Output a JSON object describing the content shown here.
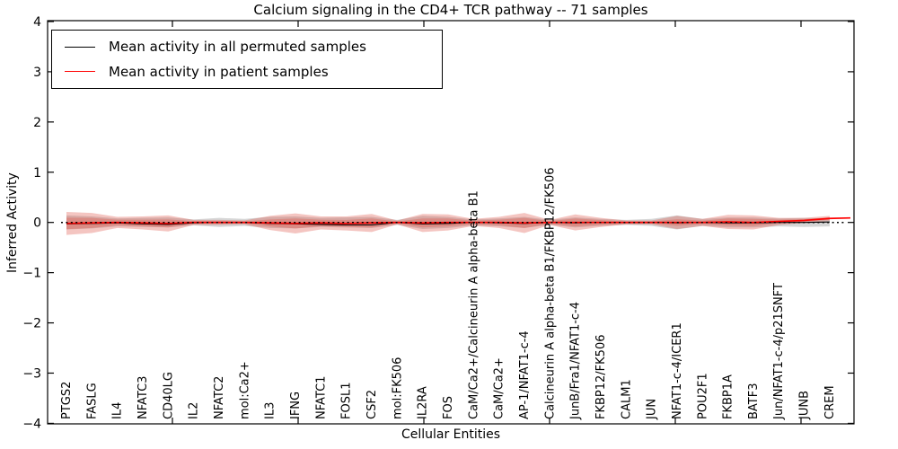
{
  "title": "Calcium signaling in the CD4+ TCR pathway -- 71 samples",
  "axes": {
    "xlabel": "Cellular Entities",
    "ylabel": "Inferred Activity",
    "ytick_labels": [
      "4",
      "3",
      "2",
      "1",
      "0",
      "−1",
      "−2",
      "−3",
      "−4"
    ],
    "ytick_values": [
      4,
      3,
      2,
      1,
      0,
      -1,
      -2,
      -3,
      -4
    ]
  },
  "legend": {
    "items": [
      {
        "label": "Mean activity in all permuted samples",
        "color": "#000000"
      },
      {
        "label": "Mean activity in patient samples",
        "color": "#ff0000"
      }
    ]
  },
  "chart_data": {
    "type": "line",
    "title": "Calcium signaling in the CD4+ TCR pathway -- 71 samples",
    "xlabel": "Cellular Entities",
    "ylabel": "Inferred Activity",
    "ylim": [
      -4,
      4
    ],
    "yticks": [
      4,
      3,
      2,
      1,
      0,
      -1,
      -2,
      -3,
      -4
    ],
    "grid": false,
    "legend_position": "upper left",
    "baseline": 0,
    "categories": [
      "PTGS2",
      "FASLG",
      "IL4",
      "NFATC3",
      "CD40LG",
      "IL2",
      "NFATC2",
      "mol:Ca2+",
      "IL3",
      "IFNG",
      "NFATC1",
      "FOSL1",
      "CSF2",
      "mol:FK506",
      "IL2RA",
      "FOS",
      "CaM/Ca2+/Calcineurin A alpha-beta B1",
      "CaM/Ca2+",
      "AP-1/NFAT1-c-4",
      "Calcineurin A alpha-beta B1/FKBP12/FK506",
      "JunB/Fra1/NFAT1-c-4",
      "FKBP12/FK506",
      "CALM1",
      "JUN",
      "NFAT1-c-4/ICER1",
      "POU2F1",
      "FKBP1A",
      "BATF3",
      "Jun/NFAT1-c-4/p21SNFT",
      "JUNB",
      "CREM"
    ],
    "series": [
      {
        "name": "Mean activity in all permuted samples",
        "color": "#000000",
        "style": "solid",
        "values": [
          -0.03,
          -0.02,
          -0.01,
          -0.03,
          -0.04,
          -0.01,
          0,
          0,
          -0.02,
          -0.03,
          -0.04,
          -0.05,
          -0.05,
          0,
          -0.03,
          -0.02,
          0,
          -0.01,
          -0.02,
          0,
          -0.01,
          0,
          0,
          0,
          -0.01,
          0,
          -0.01,
          -0.01,
          0,
          0,
          0.01
        ]
      },
      {
        "name": "Mean activity in patient samples",
        "color": "#ff0000",
        "style": "solid",
        "values": [
          -0.02,
          -0.01,
          0,
          -0.01,
          -0.02,
          0,
          0,
          0,
          -0.01,
          -0.02,
          -0.01,
          -0.02,
          -0.01,
          0,
          -0.01,
          0,
          0,
          0,
          -0.01,
          0,
          0,
          0,
          0,
          0,
          0,
          0,
          0.01,
          0,
          0.02,
          0.04,
          0.08
        ]
      }
    ],
    "bands": [
      {
        "name": "patient-samples-spread",
        "color": "#dd4f43",
        "center_series": "Mean activity in patient samples",
        "halfwidths": [
          0.23,
          0.2,
          0.11,
          0.13,
          0.16,
          0.05,
          0.05,
          0.04,
          0.14,
          0.2,
          0.13,
          0.14,
          0.18,
          0.04,
          0.18,
          0.16,
          0.07,
          0.11,
          0.2,
          0.05,
          0.16,
          0.09,
          0.04,
          0.04,
          0.13,
          0.07,
          0.14,
          0.14,
          0.07,
          0.05,
          0.05
        ]
      },
      {
        "name": "permuted-samples-spread",
        "color": "#999999",
        "center_series": "baseline",
        "halfwidths": [
          0.14,
          0.12,
          0.08,
          0.09,
          0.1,
          0.06,
          0.09,
          0.07,
          0.11,
          0.12,
          0.09,
          0.1,
          0.11,
          0.05,
          0.13,
          0.11,
          0.06,
          0.08,
          0.11,
          0.05,
          0.1,
          0.07,
          0.05,
          0.07,
          0.14,
          0.07,
          0.1,
          0.1,
          0.08,
          0.09,
          0.08
        ]
      }
    ],
    "baseline_style": {
      "color": "#000000",
      "style": "dotted"
    }
  }
}
